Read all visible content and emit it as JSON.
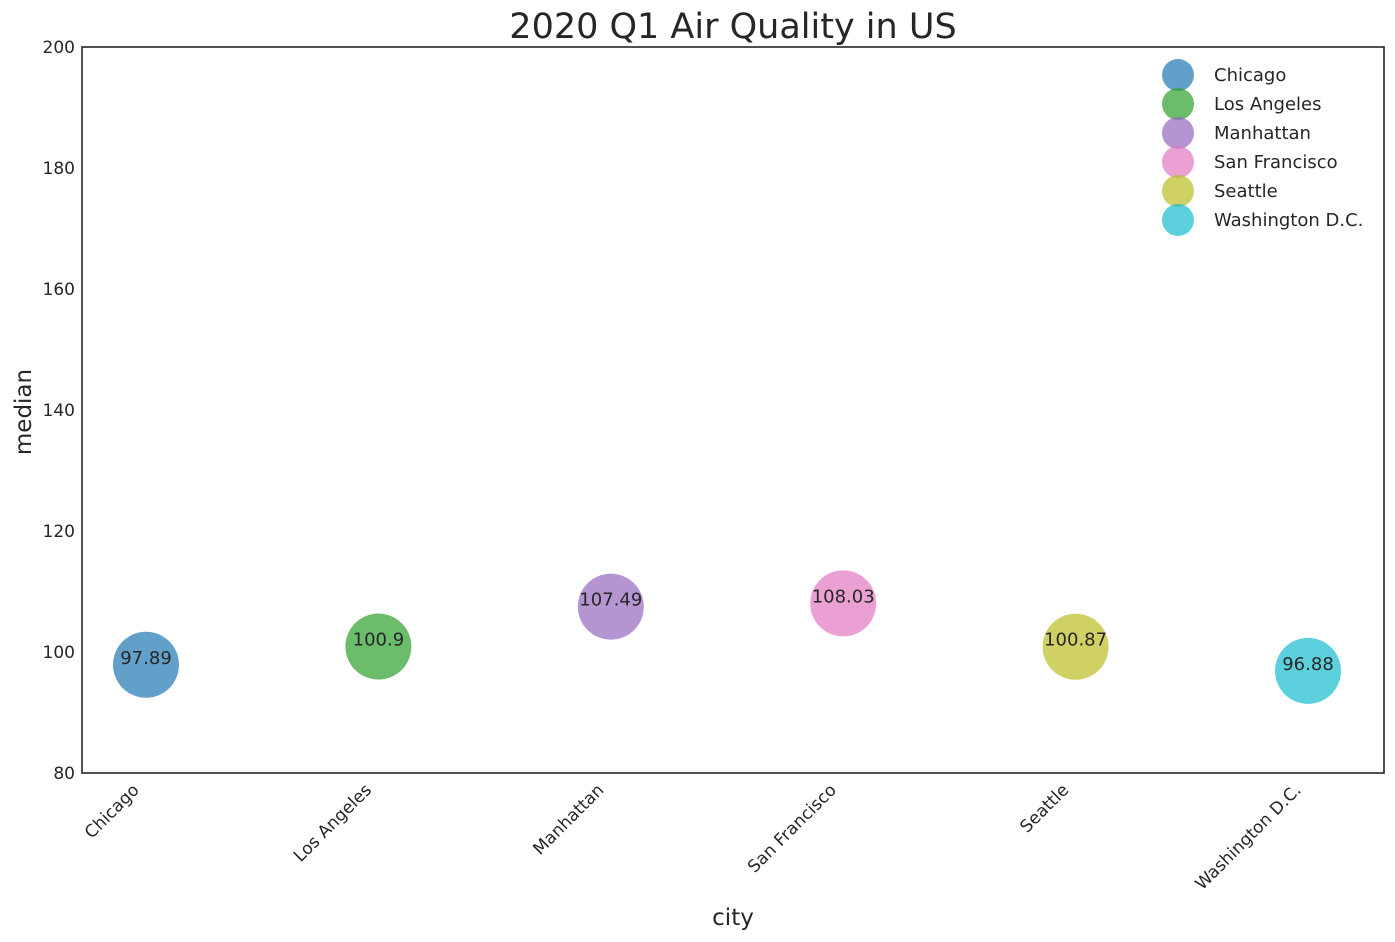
{
  "chart_data": {
    "type": "scatter",
    "title": "2020 Q1 Air Quality in US",
    "xlabel": "city",
    "ylabel": "median",
    "ylim": [
      80,
      200
    ],
    "yticks": [
      80,
      100,
      120,
      140,
      160,
      180,
      200
    ],
    "categories": [
      "Chicago",
      "Los Angeles",
      "Manhattan",
      "San Francisco",
      "Seattle",
      "Washington D.C."
    ],
    "series": [
      {
        "name": "Chicago",
        "x": "Chicago",
        "value": 97.89,
        "label": "97.89",
        "color": "#1f77b4"
      },
      {
        "name": "Los Angeles",
        "x": "Los Angeles",
        "value": 100.9,
        "label": "100.9",
        "color": "#2ca02c"
      },
      {
        "name": "Manhattan",
        "x": "Manhattan",
        "value": 107.49,
        "label": "107.49",
        "color": "#9467bd"
      },
      {
        "name": "San Francisco",
        "x": "San Francisco",
        "value": 108.03,
        "label": "108.03",
        "color": "#e377c2"
      },
      {
        "name": "Seattle",
        "x": "Seattle",
        "value": 100.87,
        "label": "100.87",
        "color": "#bcbd22"
      },
      {
        "name": "Washington D.C.",
        "x": "Washington D.C.",
        "value": 96.88,
        "label": "96.88",
        "color": "#17becf"
      }
    ],
    "grid": false,
    "legend": "top-right"
  }
}
